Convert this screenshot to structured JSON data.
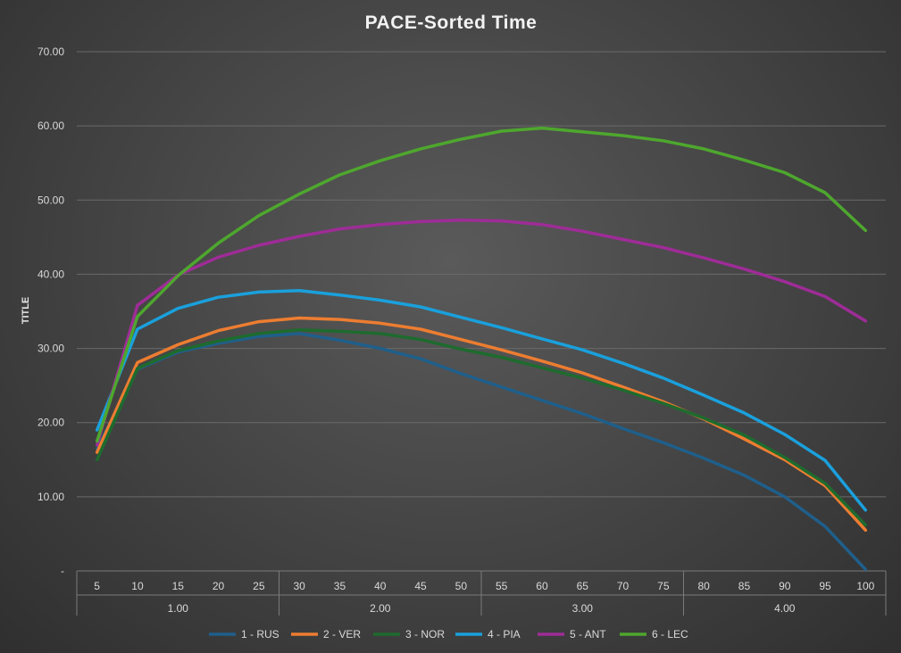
{
  "chart_data": {
    "type": "line",
    "title": "PACE-Sorted Time",
    "xlabel": "",
    "ylabel": "TITLE",
    "ylim": [
      0,
      70
    ],
    "yticks": [
      "-",
      "10.00",
      "20.00",
      "30.00",
      "40.00",
      "50.00",
      "60.00",
      "70.00"
    ],
    "grid": true,
    "legend_position": "bottom",
    "categories": [
      "5",
      "10",
      "15",
      "20",
      "25",
      "30",
      "35",
      "40",
      "45",
      "50",
      "55",
      "60",
      "65",
      "70",
      "75",
      "80",
      "85",
      "90",
      "95",
      "100"
    ],
    "groups": [
      {
        "label": "1.00",
        "count": 5
      },
      {
        "label": "2.00",
        "count": 5
      },
      {
        "label": "3.00",
        "count": 5
      },
      {
        "label": "4.00",
        "count": 5
      }
    ],
    "series": [
      {
        "name": "1 - RUS",
        "color": "#1f5f8b",
        "values": [
          16.5,
          27.2,
          29.5,
          30.7,
          31.6,
          32.0,
          31.1,
          30.0,
          28.6,
          26.6,
          24.8,
          23.0,
          21.2,
          19.2,
          17.3,
          15.2,
          12.9,
          10.0,
          6.0,
          0.2
        ]
      },
      {
        "name": "2 - VER",
        "color": "#ed7d31",
        "values": [
          16.0,
          28.1,
          30.5,
          32.4,
          33.6,
          34.1,
          33.9,
          33.4,
          32.6,
          31.2,
          29.8,
          28.3,
          26.7,
          24.8,
          22.8,
          20.5,
          17.8,
          15.0,
          11.5,
          5.5
        ]
      },
      {
        "name": "3 - NOR",
        "color": "#1e6b2e",
        "values": [
          15.0,
          27.3,
          29.7,
          31.0,
          32.0,
          32.5,
          32.3,
          32.0,
          31.2,
          29.9,
          28.8,
          27.4,
          26.0,
          24.4,
          22.6,
          20.6,
          18.3,
          15.3,
          11.8,
          6.2
        ]
      },
      {
        "name": "4 - PIA",
        "color": "#1aa0dc",
        "values": [
          19.0,
          32.6,
          35.4,
          36.9,
          37.6,
          37.8,
          37.2,
          36.5,
          35.6,
          34.2,
          32.8,
          31.3,
          29.8,
          28.0,
          26.0,
          23.7,
          21.3,
          18.4,
          14.9,
          8.2
        ]
      },
      {
        "name": "5 - ANT",
        "color": "#9e2c97",
        "values": [
          17.0,
          35.8,
          39.9,
          42.3,
          43.9,
          45.1,
          46.1,
          46.7,
          47.1,
          47.3,
          47.2,
          46.7,
          45.8,
          44.7,
          43.6,
          42.2,
          40.7,
          39.0,
          37.0,
          33.7
        ]
      },
      {
        "name": "6 - LEC",
        "color": "#4ea72e",
        "values": [
          17.5,
          34.3,
          39.8,
          44.2,
          47.9,
          50.8,
          53.4,
          55.3,
          56.9,
          58.2,
          59.3,
          59.7,
          59.2,
          58.7,
          58.0,
          56.9,
          55.4,
          53.7,
          51.0,
          45.9
        ]
      }
    ]
  }
}
